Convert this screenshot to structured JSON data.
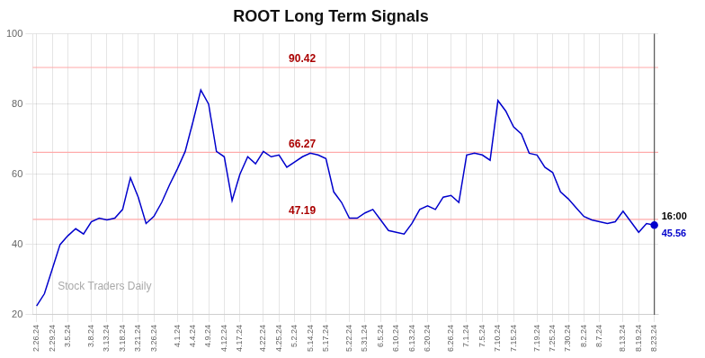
{
  "chart_data": {
    "type": "line",
    "title": "ROOT Long Term Signals",
    "categories": [
      "2.26.24",
      null,
      "2.29.24",
      null,
      "3.5.24",
      null,
      null,
      "3.8.24",
      null,
      "3.13.24",
      null,
      "3.18.24",
      null,
      "3.21.24",
      null,
      "3.26.24",
      null,
      null,
      "4.1.24",
      null,
      "4.4.24",
      null,
      "4.9.24",
      null,
      "4.12.24",
      null,
      "4.17.24",
      null,
      null,
      "4.22.24",
      null,
      "4.25.24",
      null,
      "5.2.24",
      null,
      "5.14.24",
      null,
      "5.17.24",
      null,
      null,
      "5.22.24",
      null,
      "5.31.24",
      null,
      "6.5.24",
      null,
      "6.10.24",
      null,
      "6.13.24",
      null,
      "6.20.24",
      null,
      null,
      "6.26.24",
      null,
      "7.1.24",
      null,
      "7.5.24",
      null,
      "7.10.24",
      null,
      "7.15.24",
      null,
      null,
      "7.19.24",
      null,
      "7.25.24",
      null,
      "7.30.24",
      null,
      "8.2.24",
      null,
      "8.7.24",
      null,
      null,
      "8.13.24",
      null,
      "8.19.24",
      null,
      "8.23.24"
    ],
    "values": [
      22.5,
      26.0,
      33.0,
      40.0,
      42.5,
      44.5,
      43.0,
      46.5,
      47.5,
      47.0,
      47.5,
      50.0,
      59.0,
      53.5,
      46.0,
      48.0,
      52.0,
      57.0,
      61.5,
      66.5,
      75.0,
      84.0,
      80.0,
      66.5,
      65.0,
      52.5,
      60.0,
      65.0,
      63.0,
      66.5,
      65.0,
      65.5,
      62.0,
      63.5,
      65.0,
      66.0,
      65.5,
      64.5,
      55.0,
      52.0,
      47.5,
      47.5,
      49.0,
      50.0,
      47.0,
      44.0,
      43.5,
      43.0,
      46.0,
      50.0,
      51.0,
      50.0,
      53.5,
      54.0,
      52.0,
      65.5,
      66.0,
      65.5,
      64.0,
      81.0,
      78.0,
      73.5,
      71.5,
      66.0,
      65.5,
      62.0,
      60.5,
      55.0,
      53.0,
      50.5,
      48.0,
      47.0,
      46.5,
      46.0,
      46.5,
      49.5,
      46.5,
      43.5,
      46.0,
      45.56
    ],
    "color": "#0000cc",
    "ylim": [
      20,
      100
    ],
    "yticks": [
      20,
      40,
      60,
      80,
      100
    ],
    "grid": true,
    "reference_lines": [
      {
        "value": 90.42,
        "label": "90.42",
        "color": "#ffaaaa",
        "label_color": "#aa0000"
      },
      {
        "value": 66.27,
        "label": "66.27",
        "color": "#ffaaaa",
        "label_color": "#aa0000"
      },
      {
        "value": 47.19,
        "label": "47.19",
        "color": "#ffaaaa",
        "label_color": "#aa0000"
      }
    ],
    "annotations": [
      {
        "text": "16:00",
        "color": "#000000"
      },
      {
        "text": "45.56",
        "value": 45.56,
        "color": "#0000cc"
      },
      {
        "text": "Stock Traders Daily",
        "color": "#aaaaaa"
      }
    ]
  }
}
